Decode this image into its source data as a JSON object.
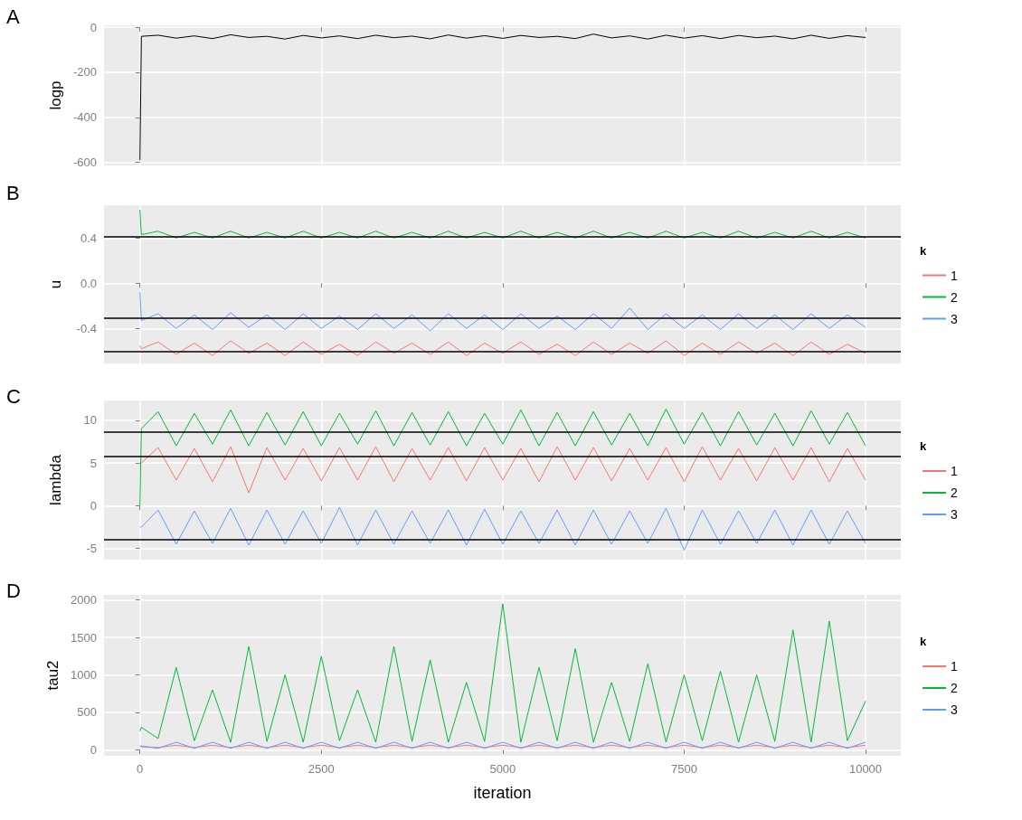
{
  "chart_data": [
    {
      "type": "line",
      "title": "A",
      "ylabel": "logp",
      "x": [
        0,
        20,
        250,
        500,
        750,
        1000,
        1250,
        1500,
        1750,
        2000,
        2250,
        2500,
        2750,
        3000,
        3250,
        3500,
        3750,
        4000,
        4250,
        4500,
        4750,
        5000,
        5250,
        5500,
        5750,
        6000,
        6250,
        6500,
        6750,
        7000,
        7250,
        7500,
        7750,
        8000,
        8250,
        8500,
        8750,
        9000,
        9250,
        9500,
        9750,
        10000
      ],
      "xlim": [
        -495,
        10486
      ],
      "xticks": [
        0,
        2500,
        5000,
        7500,
        10000
      ],
      "ylim": [
        -614,
        9
      ],
      "yticks": [
        -600,
        -400,
        -200,
        0
      ],
      "grid": true,
      "tick_labels": "y",
      "series": [
        {
          "color": "#000000",
          "values": [
            -590,
            -40,
            -35,
            -48,
            -38,
            -50,
            -33,
            -45,
            -40,
            -52,
            -36,
            -47,
            -38,
            -50,
            -35,
            -46,
            -39,
            -51,
            -34,
            -48,
            -37,
            -49,
            -36,
            -45,
            -40,
            -50,
            -30,
            -47,
            -38,
            -52,
            -35,
            -48,
            -37,
            -50,
            -36,
            -46,
            -39,
            -51,
            -35,
            -49,
            -37,
            -45
          ]
        }
      ]
    },
    {
      "type": "line",
      "title": "B",
      "ylabel": "u",
      "legend_title": "k",
      "legend": "right",
      "x": [
        0,
        20,
        250,
        500,
        750,
        1000,
        1250,
        1500,
        1750,
        2000,
        2250,
        2500,
        2750,
        3000,
        3250,
        3500,
        3750,
        4000,
        4250,
        4500,
        4750,
        5000,
        5250,
        5500,
        5750,
        6000,
        6250,
        6500,
        6750,
        7000,
        7250,
        7500,
        7750,
        8000,
        8250,
        8500,
        8750,
        9000,
        9250,
        9500,
        9750,
        10000
      ],
      "xlim": [
        -495,
        10486
      ],
      "xticks": [
        0,
        2500,
        5000,
        7500,
        10000
      ],
      "ylim": [
        -0.71,
        0.69
      ],
      "yticks": [
        -0.4,
        {
          "value": 0,
          "label": "0.0"
        },
        0.4
      ],
      "grid": true,
      "tick_labels": "y",
      "ref_lines": [
        {
          "axis": "y",
          "value": 0.41
        },
        {
          "axis": "y",
          "value": -0.31
        },
        {
          "axis": "y",
          "value": -0.6
        }
      ],
      "series": [
        {
          "name": "1",
          "color": "#f8766d",
          "values": [
            -0.55,
            -0.58,
            -0.52,
            -0.63,
            -0.53,
            -0.64,
            -0.51,
            -0.62,
            -0.53,
            -0.64,
            -0.52,
            -0.63,
            -0.54,
            -0.64,
            -0.52,
            -0.62,
            -0.53,
            -0.63,
            -0.52,
            -0.64,
            -0.53,
            -0.62,
            -0.52,
            -0.63,
            -0.54,
            -0.64,
            -0.52,
            -0.63,
            -0.53,
            -0.62,
            -0.51,
            -0.64,
            -0.53,
            -0.63,
            -0.52,
            -0.62,
            -0.53,
            -0.64,
            -0.52,
            -0.63,
            -0.54,
            -0.62
          ]
        },
        {
          "name": "2",
          "color": "#00ba38",
          "values": [
            0.65,
            0.43,
            0.46,
            0.4,
            0.45,
            0.4,
            0.46,
            0.4,
            0.45,
            0.4,
            0.46,
            0.4,
            0.45,
            0.4,
            0.46,
            0.4,
            0.45,
            0.4,
            0.46,
            0.4,
            0.45,
            0.4,
            0.46,
            0.4,
            0.45,
            0.4,
            0.46,
            0.4,
            0.45,
            0.4,
            0.46,
            0.4,
            0.45,
            0.4,
            0.46,
            0.4,
            0.45,
            0.4,
            0.46,
            0.4,
            0.45,
            0.4
          ]
        },
        {
          "name": "3",
          "color": "#619cff",
          "values": [
            -0.08,
            -0.33,
            -0.27,
            -0.4,
            -0.28,
            -0.41,
            -0.26,
            -0.39,
            -0.28,
            -0.41,
            -0.27,
            -0.4,
            -0.29,
            -0.41,
            -0.27,
            -0.4,
            -0.28,
            -0.42,
            -0.27,
            -0.4,
            -0.28,
            -0.41,
            -0.27,
            -0.4,
            -0.29,
            -0.41,
            -0.27,
            -0.4,
            -0.22,
            -0.41,
            -0.27,
            -0.4,
            -0.28,
            -0.41,
            -0.27,
            -0.4,
            -0.28,
            -0.41,
            -0.27,
            -0.4,
            -0.28,
            -0.39
          ]
        }
      ]
    },
    {
      "type": "line",
      "title": "C",
      "ylabel": "lambda",
      "legend_title": "k",
      "legend": "right",
      "x": [
        0,
        20,
        250,
        500,
        750,
        1000,
        1250,
        1500,
        1750,
        2000,
        2250,
        2500,
        2750,
        3000,
        3250,
        3500,
        3750,
        4000,
        4250,
        4500,
        4750,
        5000,
        5250,
        5500,
        5750,
        6000,
        6250,
        6500,
        6750,
        7000,
        7250,
        7500,
        7750,
        8000,
        8250,
        8500,
        8750,
        9000,
        9250,
        9500,
        9750,
        10000
      ],
      "xlim": [
        -495,
        10486
      ],
      "xticks": [
        0,
        2500,
        5000,
        7500,
        10000
      ],
      "ylim": [
        -6.3,
        12.3
      ],
      "yticks": [
        -5,
        0,
        5,
        10
      ],
      "grid": true,
      "tick_labels": "y",
      "ref_lines": [
        {
          "axis": "y",
          "value": 8.6
        },
        {
          "axis": "y",
          "value": 5.8
        },
        {
          "axis": "y",
          "value": -4
        }
      ],
      "series": [
        {
          "name": "1",
          "color": "#f8766d",
          "values": [
            5,
            5,
            6.8,
            3,
            6.7,
            2.8,
            6.9,
            1.5,
            6.8,
            3,
            6.7,
            2.9,
            6.8,
            3,
            6.9,
            2.8,
            6.7,
            3,
            6.8,
            2.9,
            6.8,
            3,
            6.7,
            2.8,
            6.9,
            3,
            6.8,
            2.9,
            6.7,
            3,
            6.8,
            2.8,
            6.9,
            3,
            6.7,
            2.9,
            6.8,
            3,
            6.8,
            2.8,
            6.7,
            3
          ]
        },
        {
          "name": "2",
          "color": "#00ba38",
          "values": [
            0,
            9,
            11,
            7,
            10.8,
            7.2,
            11.2,
            7,
            10.9,
            7.1,
            11,
            7,
            10.8,
            7.2,
            11.1,
            7,
            10.9,
            7.1,
            11,
            7,
            10.8,
            7.2,
            11.2,
            7,
            10.9,
            7,
            11,
            7.1,
            10.8,
            7,
            11.3,
            7.2,
            10.9,
            7,
            11,
            7.1,
            10.8,
            7,
            11.1,
            7.2,
            10.9,
            7
          ]
        },
        {
          "name": "3",
          "color": "#619cff",
          "values": [
            -2.5,
            -2.5,
            -0.5,
            -4.5,
            -0.6,
            -4.4,
            -0.3,
            -4.6,
            -0.5,
            -4.5,
            -0.6,
            -4.4,
            -0.2,
            -4.6,
            -0.5,
            -4.5,
            -0.6,
            -4.4,
            -0.5,
            -4.6,
            -0.4,
            -4.5,
            -0.6,
            -4.4,
            -0.5,
            -4.6,
            -0.5,
            -4.5,
            -0.6,
            -4.4,
            -0.3,
            -5.2,
            -0.5,
            -4.5,
            -0.6,
            -4.4,
            -0.5,
            -4.6,
            -0.5,
            -4.5,
            -0.6,
            -4.4
          ]
        }
      ]
    },
    {
      "type": "line",
      "title": "D",
      "ylabel": "tau2",
      "xlabel": "iteration",
      "legend_title": "k",
      "legend": "right",
      "x": [
        0,
        20,
        250,
        500,
        750,
        1000,
        1250,
        1500,
        1750,
        2000,
        2250,
        2500,
        2750,
        3000,
        3250,
        3500,
        3750,
        4000,
        4250,
        4500,
        4750,
        5000,
        5250,
        5500,
        5750,
        6000,
        6250,
        6500,
        6750,
        7000,
        7250,
        7500,
        7750,
        8000,
        8250,
        8500,
        8750,
        9000,
        9250,
        9500,
        9750,
        10000
      ],
      "xlim": [
        -495,
        10486
      ],
      "xticks": [
        0,
        2500,
        5000,
        7500,
        10000
      ],
      "ylim": [
        -81,
        2069
      ],
      "yticks": [
        0,
        500,
        1000,
        1500,
        2000
      ],
      "grid": true,
      "series": [
        {
          "name": "1",
          "color": "#f8766d",
          "values": [
            40,
            40,
            30,
            60,
            30,
            60,
            30,
            60,
            30,
            60,
            30,
            60,
            30,
            60,
            30,
            60,
            30,
            60,
            30,
            60,
            30,
            60,
            30,
            60,
            30,
            60,
            30,
            60,
            30,
            60,
            30,
            60,
            30,
            60,
            30,
            60,
            30,
            60,
            30,
            60,
            30,
            60
          ]
        },
        {
          "name": "2",
          "color": "#00ba38",
          "values": [
            250,
            300,
            150,
            1100,
            120,
            800,
            100,
            1380,
            110,
            1000,
            100,
            1250,
            120,
            800,
            100,
            1380,
            110,
            1200,
            100,
            900,
            110,
            1950,
            100,
            1100,
            120,
            1350,
            100,
            900,
            110,
            1150,
            100,
            1000,
            120,
            1050,
            100,
            1000,
            110,
            1600,
            100,
            1720,
            120,
            650
          ]
        },
        {
          "name": "3",
          "color": "#619cff",
          "values": [
            50,
            50,
            20,
            100,
            20,
            100,
            20,
            100,
            20,
            100,
            20,
            100,
            20,
            100,
            20,
            100,
            20,
            100,
            20,
            100,
            20,
            100,
            20,
            100,
            20,
            100,
            20,
            100,
            20,
            100,
            20,
            100,
            20,
            100,
            20,
            100,
            20,
            100,
            20,
            100,
            20,
            100
          ]
        }
      ]
    }
  ]
}
